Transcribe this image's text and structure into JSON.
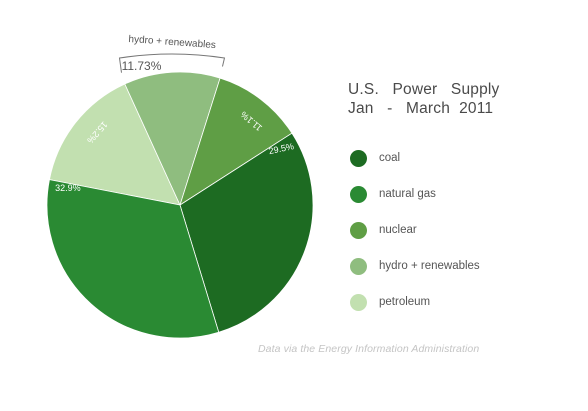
{
  "title_line1": "U.S.   Power   Supply",
  "title_line2": "Jan   -   March  2011",
  "source": "Data via the Energy Information Administration",
  "bracket_label": "hydro + renewables",
  "bracket_value": "11.73%",
  "chart_data": {
    "type": "pie",
    "title": "U.S. Power Supply Jan - March 2011",
    "slices": [
      {
        "label": "coal",
        "value": 29.5,
        "value_label": "29.5%",
        "color": "#1d6b22"
      },
      {
        "label": "natural gas",
        "value": 32.9,
        "value_label": "32.9%",
        "color": "#2a8a33"
      },
      {
        "label": "nuclear",
        "value": 11.1,
        "value_label": "11.1%",
        "color": "#5f9e45"
      },
      {
        "label": "hydro + renewables",
        "value": 11.73,
        "value_label": "",
        "color": "#8fbd7f"
      },
      {
        "label": "petroleum",
        "value": 15.2,
        "value_label": "15.2%",
        "color": "#c2e0b0"
      }
    ],
    "legend": "right"
  }
}
